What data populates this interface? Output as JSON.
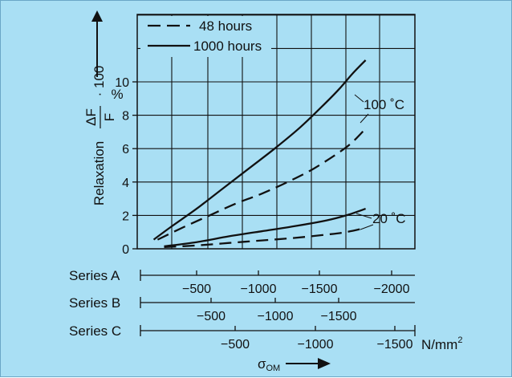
{
  "chart_data": {
    "type": "line",
    "title": "",
    "ylabel": "Relaxation",
    "ylabel_fraction": {
      "num": "ΔF",
      "den": "F",
      "factor": "· 100"
    },
    "yunit": "%",
    "ylim": [
      0,
      14
    ],
    "yticks": [
      "0",
      "2",
      "4",
      "6",
      "8",
      "10"
    ],
    "grid": true,
    "legend": {
      "placement": "top-left",
      "entries": [
        {
          "label": "48 hours",
          "style": "dashed"
        },
        {
          "label": "1000 hours",
          "style": "solid"
        }
      ]
    },
    "annotations": [
      "100 ˚C",
      "20 ˚C"
    ],
    "x_axes": [
      {
        "name": "Series A",
        "ticks": [
          {
            "label": "−500",
            "value": -500
          },
          {
            "label": "−1000",
            "value": -1000
          },
          {
            "label": "−1500",
            "value": -1500
          },
          {
            "label": "−2000",
            "value": -2000
          }
        ]
      },
      {
        "name": "Series B",
        "ticks": [
          {
            "label": "−500",
            "value": -500
          },
          {
            "label": "−1000",
            "value": -1000
          },
          {
            "label": "−1500",
            "value": -1500
          }
        ]
      },
      {
        "name": "Series C",
        "ticks": [
          {
            "label": "−500",
            "value": -500
          },
          {
            "label": "−1000",
            "value": -1000
          },
          {
            "label": "−1500",
            "value": -1500
          }
        ]
      }
    ],
    "x_unit": "N/mm",
    "x_unit_sup": "2",
    "xlabel": "σ",
    "xlabel_sub": "OM",
    "x_ref_axis": "Series A",
    "series": [
      {
        "temperature": "100 ˚C",
        "duration": "1000 hours",
        "style": "solid",
        "x": [
          -170,
          -300,
          -500,
          -700,
          -900,
          -1100,
          -1300,
          -1500,
          -1600,
          -1700,
          -1800
        ],
        "y": [
          0.55,
          1.3,
          2.4,
          3.6,
          4.8,
          6.0,
          7.3,
          8.8,
          9.6,
          10.5,
          11.3
        ]
      },
      {
        "temperature": "100 ˚C",
        "duration": "48 hours",
        "style": "dashed",
        "x": [
          -200,
          -400,
          -600,
          -800,
          -1000,
          -1200,
          -1400,
          -1600,
          -1700,
          -1800
        ],
        "y": [
          0.55,
          1.3,
          2.0,
          2.7,
          3.3,
          4.0,
          4.8,
          5.8,
          6.4,
          7.2
        ]
      },
      {
        "temperature": "20 ˚C",
        "duration": "1000 hours",
        "style": "solid",
        "x": [
          -250,
          -500,
          -750,
          -1000,
          -1250,
          -1500,
          -1650,
          -1800
        ],
        "y": [
          0.15,
          0.4,
          0.75,
          1.05,
          1.35,
          1.7,
          2.0,
          2.4
        ]
      },
      {
        "temperature": "20 ˚C",
        "duration": "48 hours",
        "style": "dashed",
        "x": [
          -250,
          -500,
          -750,
          -1000,
          -1250,
          -1500,
          -1650,
          -1800
        ],
        "y": [
          0.1,
          0.2,
          0.35,
          0.5,
          0.65,
          0.85,
          1.0,
          1.25
        ]
      }
    ]
  }
}
